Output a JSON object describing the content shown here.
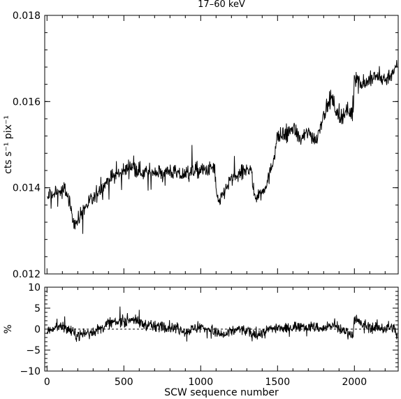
{
  "chart_data": [
    {
      "type": "line",
      "title": "17–60 keV",
      "ylabel": "cts s⁻¹ pix⁻¹",
      "xlabel": "",
      "xlim": [
        -15,
        2285
      ],
      "ylim": [
        0.012,
        0.018
      ],
      "xticks": [
        0,
        500,
        1000,
        1500,
        2000
      ],
      "xtick_labels": [],
      "yticks": [
        0.012,
        0.014,
        0.016,
        0.018
      ],
      "ytick_labels": [
        "0.012",
        "0.014",
        "0.016",
        "0.018"
      ],
      "grid": false,
      "series": [
        {
          "values_note_free": true,
          "x": [
            0,
            20,
            40,
            60,
            80,
            100,
            120,
            140,
            160,
            180,
            200,
            220,
            240,
            260,
            280,
            300,
            330,
            360,
            400,
            450,
            500,
            550,
            600,
            650,
            700,
            750,
            800,
            850,
            900,
            950,
            1000,
            1050,
            1090,
            1100,
            1120,
            1150,
            1200,
            1250,
            1300,
            1330,
            1340,
            1360,
            1400,
            1450,
            1480,
            1500,
            1550,
            1600,
            1650,
            1700,
            1750,
            1800,
            1850,
            1900,
            1950,
            1990,
            2000,
            2020,
            2050,
            2100,
            2150,
            2200,
            2250,
            2280
          ],
          "y": [
            0.0137,
            0.0139,
            0.0138,
            0.0139,
            0.0139,
            0.0139,
            0.014,
            0.0137,
            0.0134,
            0.0132,
            0.0132,
            0.0134,
            0.0135,
            0.0136,
            0.0137,
            0.0137,
            0.0139,
            0.014,
            0.0142,
            0.0143,
            0.0144,
            0.0145,
            0.0144,
            0.0143,
            0.0144,
            0.0143,
            0.0144,
            0.0143,
            0.0143,
            0.0144,
            0.0144,
            0.0144,
            0.0145,
            0.0139,
            0.0136,
            0.0139,
            0.0142,
            0.0143,
            0.0144,
            0.0145,
            0.0139,
            0.0138,
            0.0139,
            0.0143,
            0.0148,
            0.0152,
            0.0152,
            0.0154,
            0.0151,
            0.0153,
            0.0151,
            0.0157,
            0.0161,
            0.0156,
            0.0158,
            0.0157,
            0.0166,
            0.0165,
            0.0164,
            0.0165,
            0.0166,
            0.0165,
            0.0167,
            0.0168
          ]
        }
      ]
    },
    {
      "type": "line",
      "title": "",
      "ylabel": "%",
      "xlabel": "SCW sequence number",
      "xlim": [
        -15,
        2285
      ],
      "ylim": [
        -10,
        10
      ],
      "xticks": [
        0,
        500,
        1000,
        1500,
        2000
      ],
      "xtick_labels": [
        "0",
        "500",
        "1000",
        "1500",
        "2000"
      ],
      "yticks": [
        -10,
        -5,
        0,
        5,
        10
      ],
      "ytick_labels": [
        "−10",
        "−5",
        "0",
        "5",
        "10"
      ],
      "zero_line": true,
      "grid": false,
      "series": [
        {
          "x": [
            0,
            50,
            100,
            150,
            200,
            250,
            300,
            350,
            400,
            450,
            500,
            550,
            600,
            650,
            700,
            750,
            800,
            850,
            900,
            950,
            1000,
            1050,
            1100,
            1150,
            1200,
            1250,
            1300,
            1350,
            1400,
            1450,
            1500,
            1550,
            1600,
            1650,
            1700,
            1750,
            1800,
            1850,
            1900,
            1950,
            1990,
            2000,
            2050,
            2100,
            2150,
            2200,
            2250,
            2280
          ],
          "y": [
            -0.5,
            0.5,
            1.0,
            -0.5,
            -1.5,
            -1.0,
            -0.5,
            0.0,
            1.5,
            1.5,
            2.0,
            2.5,
            1.5,
            1.0,
            0.5,
            1.0,
            0.5,
            0.0,
            -0.5,
            0.0,
            0.5,
            0.0,
            -1.0,
            -1.5,
            -0.5,
            0.0,
            -0.5,
            -1.5,
            -1.0,
            0.0,
            0.5,
            0.0,
            0.5,
            1.0,
            0.5,
            0.5,
            0.0,
            1.0,
            0.0,
            -0.5,
            -1.5,
            2.5,
            1.0,
            0.5,
            0.5,
            0.0,
            0.5,
            -1.5
          ]
        }
      ]
    }
  ]
}
